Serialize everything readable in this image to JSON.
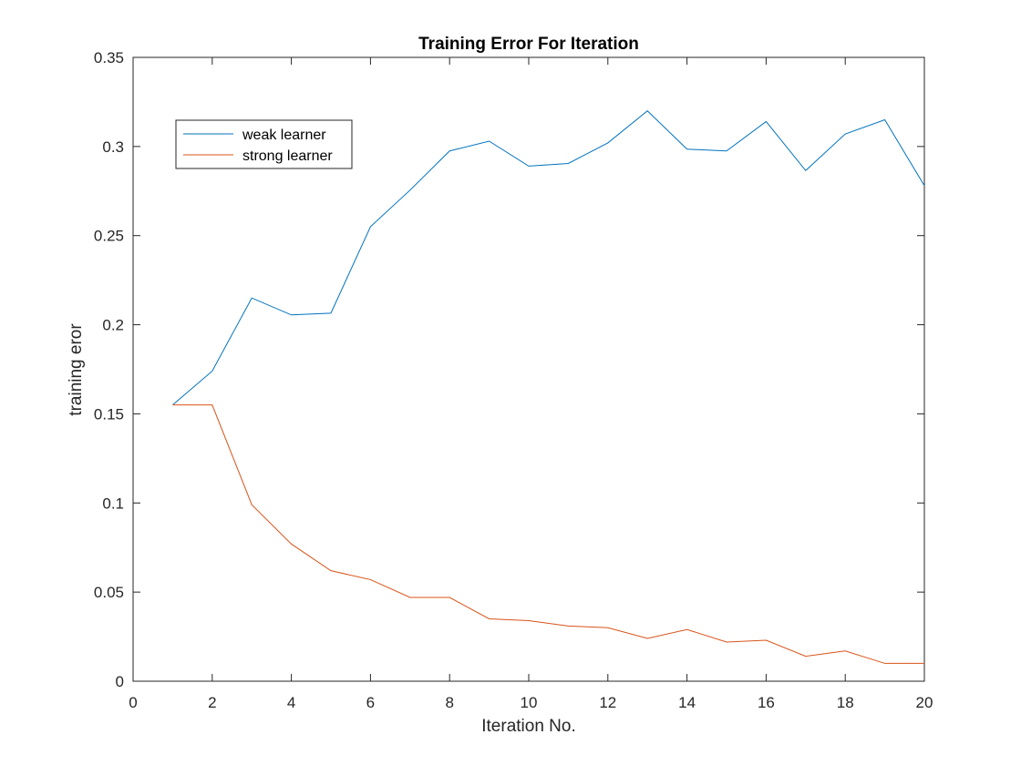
{
  "chart_data": {
    "type": "line",
    "title": "Training Error For Iteration",
    "xlabel": "Iteration No.",
    "ylabel": "training eror",
    "xlim": [
      0,
      20
    ],
    "ylim": [
      0,
      0.35
    ],
    "xticks": [
      0,
      2,
      4,
      6,
      8,
      10,
      12,
      14,
      16,
      18,
      20
    ],
    "yticks": [
      0,
      0.05,
      0.1,
      0.15,
      0.2,
      0.25,
      0.3,
      0.35
    ],
    "xtick_labels": [
      "0",
      "2",
      "4",
      "6",
      "8",
      "10",
      "12",
      "14",
      "16",
      "18",
      "20"
    ],
    "ytick_labels": [
      "0",
      "0.05",
      "0.1",
      "0.15",
      "0.2",
      "0.25",
      "0.3",
      "0.35"
    ],
    "grid": false,
    "legend_position": "top-left",
    "x": [
      1,
      2,
      3,
      4,
      5,
      6,
      7,
      8,
      9,
      10,
      11,
      12,
      13,
      14,
      15,
      16,
      17,
      18,
      19,
      20
    ],
    "series": [
      {
        "name": "weak learner",
        "color": "#0072bd",
        "values": [
          0.155,
          0.174,
          0.215,
          0.2055,
          0.2065,
          0.255,
          0.2755,
          0.2975,
          0.303,
          0.289,
          0.2905,
          0.302,
          0.32,
          0.2985,
          0.2975,
          0.314,
          0.2865,
          0.307,
          0.315,
          0.278
        ]
      },
      {
        "name": "strong learner",
        "color": "#d95319",
        "values": [
          0.155,
          0.155,
          0.099,
          0.077,
          0.062,
          0.057,
          0.047,
          0.047,
          0.035,
          0.034,
          0.031,
          0.03,
          0.024,
          0.029,
          0.022,
          0.023,
          0.014,
          0.017,
          0.01,
          0.01
        ]
      }
    ]
  }
}
